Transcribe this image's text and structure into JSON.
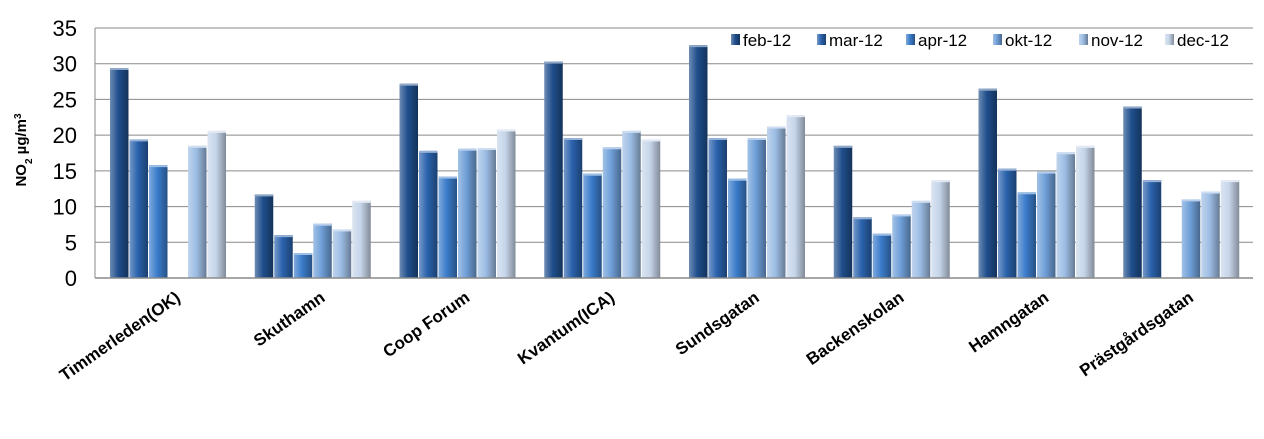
{
  "chart_data": {
    "type": "bar",
    "ylabel_parts": [
      "NO",
      "2",
      " µg/m",
      "3"
    ],
    "xlabel": "",
    "ylim": [
      0,
      35
    ],
    "yticks": [
      0,
      5,
      10,
      15,
      20,
      25,
      30,
      35
    ],
    "grid": true,
    "legend_position": "top-right",
    "categories": [
      "Timmerleden(OK)",
      "Skuthamn",
      "Coop Forum",
      "Kvantum(ICA)",
      "Sundsgatan",
      "Backenskolan",
      "Hamngatan",
      "Prästgårdsgatan"
    ],
    "series": [
      {
        "name": "feb-12",
        "color": "#1f4e8c",
        "values": [
          29.4,
          11.7,
          27.2,
          30.3,
          32.6,
          18.5,
          26.5,
          24.0
        ]
      },
      {
        "name": "mar-12",
        "color": "#2a62ac",
        "values": [
          19.4,
          6.0,
          17.8,
          19.6,
          19.6,
          8.5,
          15.3,
          13.7
        ]
      },
      {
        "name": "apr-12",
        "color": "#3b7ccb",
        "values": [
          15.8,
          3.5,
          14.2,
          14.6,
          13.9,
          6.2,
          12.0,
          null
        ]
      },
      {
        "name": "okt-12",
        "color": "#6f9fd8",
        "values": [
          null,
          7.6,
          18.1,
          18.3,
          19.6,
          8.9,
          14.9,
          11.0
        ]
      },
      {
        "name": "nov-12",
        "color": "#9dbde4",
        "values": [
          18.5,
          6.8,
          18.2,
          20.6,
          21.2,
          10.8,
          17.6,
          12.1
        ]
      },
      {
        "name": "dec-12",
        "color": "#c6d5ea",
        "values": [
          20.6,
          10.8,
          20.8,
          19.4,
          22.8,
          13.7,
          18.5,
          13.7
        ]
      }
    ]
  }
}
